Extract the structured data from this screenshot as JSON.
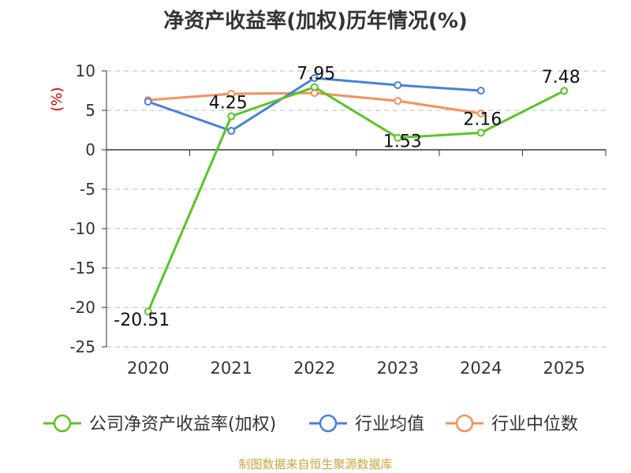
{
  "chart_data": {
    "type": "line",
    "title": "净资产收益率(加权)历年情况(%)",
    "ylabel": "(%)",
    "xlabel": "",
    "ylim": [
      -25,
      10
    ],
    "yticks": [
      10,
      5,
      0,
      -5,
      -10,
      -15,
      -20,
      -25
    ],
    "yticklabels": [
      "10",
      "5",
      "0",
      "-5",
      "-10",
      "-15",
      "-20",
      "-25"
    ],
    "categories": [
      "2020",
      "2021",
      "2022",
      "2023",
      "2024",
      "2025"
    ],
    "series": [
      {
        "name": "公司净资产收益率(加权)",
        "color": "#5cc326",
        "values": [
          -20.51,
          4.25,
          7.95,
          1.53,
          2.16,
          7.48
        ],
        "labels": [
          "-20.51",
          "4.25",
          "7.95",
          "1.53",
          "2.16",
          "7.48"
        ]
      },
      {
        "name": "行业均值",
        "color": "#4a7fdc",
        "values": [
          6.1,
          2.4,
          9.1,
          8.2,
          7.5,
          null
        ]
      },
      {
        "name": "行业中位数",
        "color": "#f5905c",
        "values": [
          6.3,
          7.1,
          7.2,
          6.2,
          4.6,
          null
        ]
      }
    ],
    "legend_position": "bottom",
    "grid": "horizontal-dashed"
  },
  "footer": "制图数据来自恒生聚源数据库"
}
